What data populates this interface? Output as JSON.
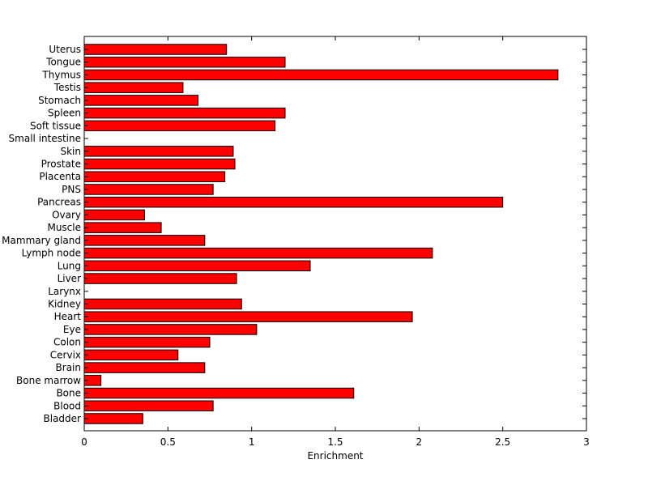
{
  "chart_data": {
    "type": "bar",
    "orientation": "horizontal",
    "title": "",
    "xlabel": "Enrichment",
    "ylabel": "",
    "xlim": [
      0,
      3
    ],
    "xticks": [
      "0",
      "0.5",
      "1",
      "1.5",
      "2",
      "2.5",
      "3"
    ],
    "grid": false,
    "bar_color": "#ff0000",
    "categories": [
      "Uterus",
      "Tongue",
      "Thymus",
      "Testis",
      "Stomach",
      "Spleen",
      "Soft tissue",
      "Small intestine",
      "Skin",
      "Prostate",
      "Placenta",
      "PNS",
      "Pancreas",
      "Ovary",
      "Muscle",
      "Mammary gland",
      "Lymph node",
      "Lung",
      "Liver",
      "Larynx",
      "Kidney",
      "Heart",
      "Eye",
      "Colon",
      "Cervix",
      "Brain",
      "Bone marrow",
      "Bone",
      "Blood",
      "Bladder"
    ],
    "values": [
      0.85,
      1.2,
      2.83,
      0.59,
      0.68,
      1.2,
      1.14,
      0,
      0.89,
      0.9,
      0.84,
      0.77,
      2.5,
      0.36,
      0.46,
      0.72,
      2.08,
      1.35,
      0.91,
      0,
      0.94,
      1.96,
      1.03,
      0.75,
      0.56,
      0.72,
      0.1,
      1.61,
      0.77,
      0.35
    ]
  }
}
